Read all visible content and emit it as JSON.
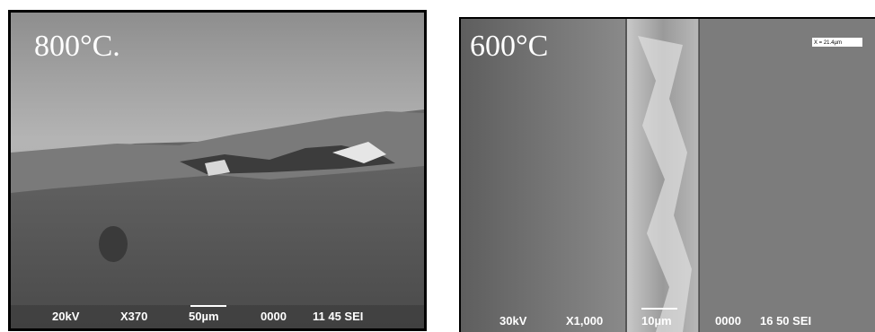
{
  "panels": [
    {
      "label": "800°C.",
      "footer": [
        "20kV",
        "X370",
        "50µm",
        "0000",
        "11 45 SEI"
      ]
    },
    {
      "label": "600°C",
      "footer": [
        "30kV",
        "X1,000",
        "10µm",
        "0000",
        "16 50 SEI"
      ],
      "measurement": "X = 21.4µm"
    }
  ]
}
